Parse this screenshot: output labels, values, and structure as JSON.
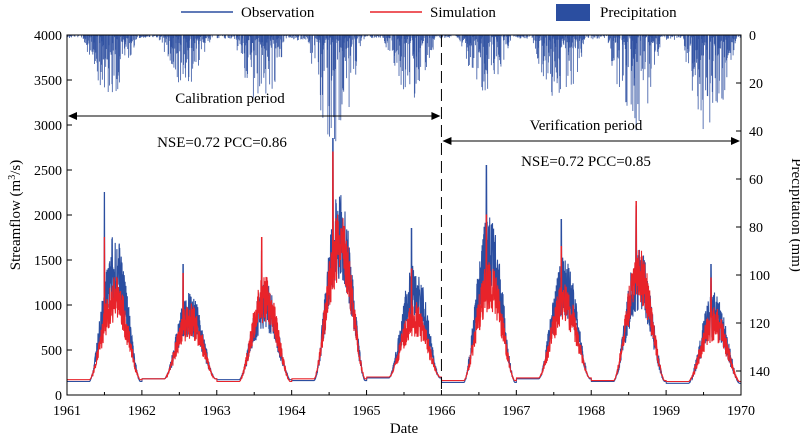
{
  "chart_data": {
    "type": "line",
    "xlabel": "Date",
    "ylabel_left": "Streamflow (m³/s)",
    "ylabel_left_parts": {
      "pre": "Streamflow (m",
      "sup": "3",
      "post": "/s)"
    },
    "ylabel_right": "Precipitation (mm)",
    "x_ticks": [
      "1961",
      "1962",
      "1963",
      "1964",
      "1965",
      "1966",
      "1967",
      "1968",
      "1969",
      "1970"
    ],
    "xlim": [
      1961,
      1970
    ],
    "y_left_ticks": [
      "0",
      "500",
      "1000",
      "1500",
      "2000",
      "2500",
      "3000",
      "3500",
      "4000"
    ],
    "ylim_left": [
      0,
      4000
    ],
    "y_right_ticks": [
      "0",
      "20",
      "40",
      "60",
      "80",
      "100",
      "120",
      "140"
    ],
    "ylim_right": [
      0,
      150
    ],
    "y_right_inverted": true,
    "legend": [
      {
        "name": "Observation",
        "kind": "line",
        "color": "#2b4ea0"
      },
      {
        "name": "Simulation",
        "kind": "line",
        "color": "#e8232a"
      },
      {
        "name": "Precipitation",
        "kind": "bar",
        "color": "#2b4ea0"
      }
    ],
    "legend_position": "top",
    "split_year": 1966,
    "annotations": {
      "calibration": {
        "label": "Calibration period",
        "stats": "NSE=0.72 PCC=0.86",
        "x_range": [
          1961,
          1966
        ]
      },
      "verification": {
        "label": "Verification period",
        "stats": "NSE=0.72 PCC=0.85",
        "x_range": [
          1966,
          1970
        ]
      }
    },
    "series": [
      {
        "name": "Observation",
        "color": "#2b4ea0",
        "annual_peaks": [
          {
            "year": 1961,
            "peak_time": 1961.5,
            "peak": 2250,
            "base": 150
          },
          {
            "year": 1962,
            "peak_time": 1962.55,
            "peak": 1450,
            "base": 180
          },
          {
            "year": 1963,
            "peak_time": 1963.6,
            "peak": 1600,
            "base": 170
          },
          {
            "year": 1964,
            "peak_time": 1964.55,
            "peak": 2850,
            "base": 160
          },
          {
            "year": 1965,
            "peak_time": 1965.6,
            "peak": 1850,
            "base": 190
          },
          {
            "year": 1966,
            "peak_time": 1966.6,
            "peak": 2550,
            "base": 140
          },
          {
            "year": 1967,
            "peak_time": 1967.6,
            "peak": 1950,
            "base": 180
          },
          {
            "year": 1968,
            "peak_time": 1968.6,
            "peak": 2100,
            "base": 150
          },
          {
            "year": 1969,
            "peak_time": 1969.6,
            "peak": 1450,
            "base": 130
          }
        ]
      },
      {
        "name": "Simulation",
        "color": "#e8232a",
        "annual_peaks": [
          {
            "year": 1961,
            "peak_time": 1961.5,
            "peak": 1750,
            "base": 170
          },
          {
            "year": 1962,
            "peak_time": 1962.55,
            "peak": 1350,
            "base": 180
          },
          {
            "year": 1963,
            "peak_time": 1963.6,
            "peak": 1750,
            "base": 150
          },
          {
            "year": 1964,
            "peak_time": 1964.55,
            "peak": 2700,
            "base": 180
          },
          {
            "year": 1965,
            "peak_time": 1965.6,
            "peak": 1400,
            "base": 200
          },
          {
            "year": 1966,
            "peak_time": 1966.6,
            "peak": 2000,
            "base": 160
          },
          {
            "year": 1967,
            "peak_time": 1967.6,
            "peak": 1650,
            "base": 190
          },
          {
            "year": 1968,
            "peak_time": 1968.6,
            "peak": 2150,
            "base": 160
          },
          {
            "year": 1969,
            "peak_time": 1969.6,
            "peak": 1300,
            "base": 150
          }
        ]
      },
      {
        "name": "Precipitation",
        "color": "#2b4ea0",
        "axis": "right",
        "annual_max_mm": [
          {
            "year": 1961,
            "max": 25
          },
          {
            "year": 1962,
            "max": 22
          },
          {
            "year": 1963,
            "max": 30
          },
          {
            "year": 1964,
            "max": 45
          },
          {
            "year": 1965,
            "max": 28
          },
          {
            "year": 1966,
            "max": 24
          },
          {
            "year": 1967,
            "max": 30
          },
          {
            "year": 1968,
            "max": 40
          },
          {
            "year": 1969,
            "max": 42
          }
        ]
      }
    ]
  }
}
